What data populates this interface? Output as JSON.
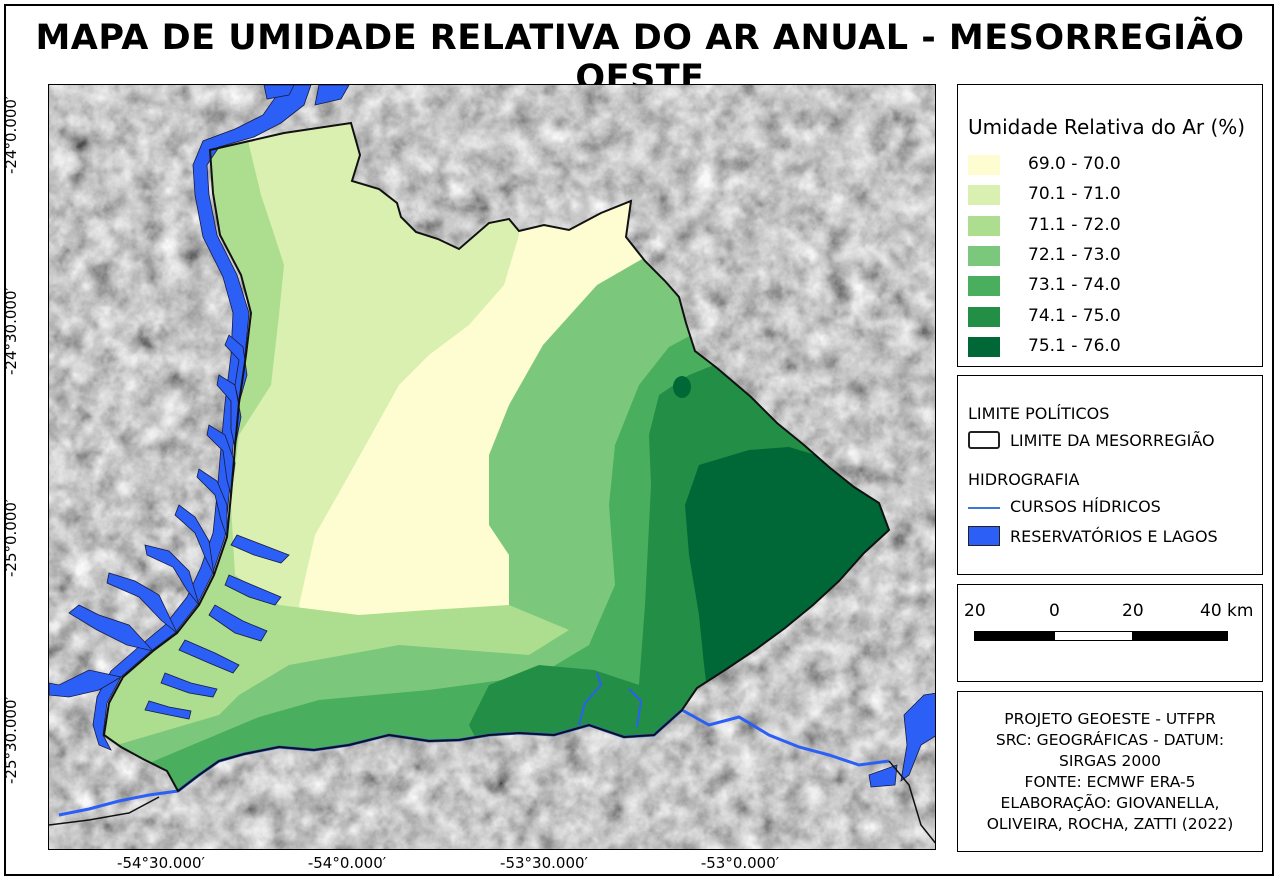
{
  "title": "MAPA DE UMIDADE RELATIVA DO AR ANUAL - MESORREGIÃO OESTE",
  "graticule": {
    "lat_labels": [
      "-24°0.000′",
      "-24°30.000′",
      "-25°0.000′",
      "-25°30.000′"
    ],
    "lon_labels": [
      "-54°30.000′",
      "-54°0.000′",
      "-53°30.000′",
      "-53°0.000′"
    ]
  },
  "legend": {
    "title": "Umidade Relativa do Ar (%)",
    "classes": [
      {
        "label": "69.0 - 70.0",
        "color": "#fefdd1"
      },
      {
        "label": "70.1 - 71.0",
        "color": "#d9f0b0"
      },
      {
        "label": "71.1 - 72.0",
        "color": "#addd8e"
      },
      {
        "label": "72.1 - 73.0",
        "color": "#7bc87c"
      },
      {
        "label": "73.1 - 74.0",
        "color": "#4aae5f"
      },
      {
        "label": "74.1 - 75.0",
        "color": "#238e45"
      },
      {
        "label": "75.1 - 76.0",
        "color": "#006837"
      }
    ]
  },
  "layers": {
    "political_heading": "LIMITE POLÍTICOS",
    "boundary_label": "LIMITE DA MESORREGIÃO",
    "hydro_heading": "HIDROGRAFIA",
    "rivers_label": "CURSOS HÍDRICOS",
    "lakes_label": "RESERVATÓRIOS E LAGOS",
    "water_color": "#2b5ff5",
    "stream_color": "#3f74d9"
  },
  "scale_bar": {
    "labels": [
      "20",
      "0",
      "20",
      "40 km"
    ]
  },
  "credits": [
    "PROJETO GEOESTE - UTFPR",
    "SRC: GEOGRÁFICAS - DATUM:",
    "SIRGAS 2000",
    "FONTE: ECMWF ERA-5",
    "ELABORAÇÃO: GIOVANELLA,",
    "OLIVEIRA, ROCHA, ZATTI (2022)"
  ]
}
